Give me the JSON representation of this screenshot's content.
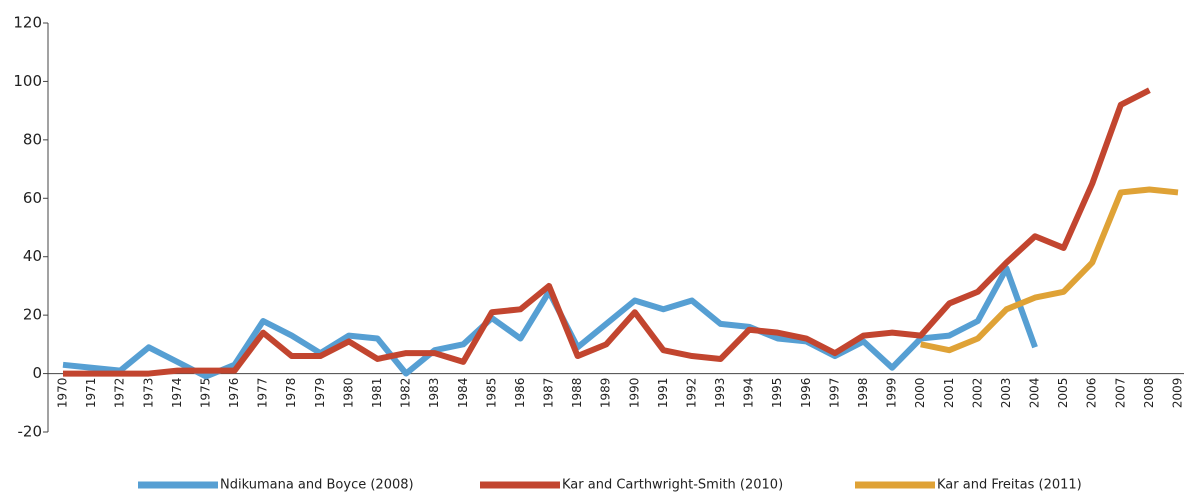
{
  "chart_data": {
    "type": "line",
    "categories": [
      "1970",
      "1971",
      "1972",
      "1973",
      "1974",
      "1975",
      "1976",
      "1977",
      "1978",
      "1979",
      "1980",
      "1981",
      "1982",
      "1983",
      "1984",
      "1985",
      "1986",
      "1987",
      "1988",
      "1989",
      "1990",
      "1991",
      "1992",
      "1993",
      "1994",
      "1995",
      "1996",
      "1997",
      "1998",
      "1999",
      "2000",
      "2001",
      "2002",
      "2003",
      "2004",
      "2005",
      "2006",
      "2007",
      "2008",
      "2009"
    ],
    "series": [
      {
        "name": "Ndikumana and Boyce (2008)",
        "color": "#569fd3",
        "values": [
          3,
          2,
          1,
          9,
          4,
          -1,
          3,
          18,
          13,
          7,
          13,
          12,
          0,
          8,
          10,
          19,
          12,
          28,
          9,
          17,
          25,
          22,
          25,
          17,
          16,
          12,
          11,
          6,
          11,
          2,
          12,
          13,
          18,
          36,
          9,
          null,
          null,
          null,
          null,
          null
        ]
      },
      {
        "name": "Kar and Carthwright-Smith (2010)",
        "color": "#c2452f",
        "values": [
          0,
          0,
          0,
          0,
          1,
          1,
          1,
          14,
          6,
          6,
          11,
          5,
          7,
          7,
          4,
          21,
          22,
          30,
          6,
          10,
          21,
          8,
          6,
          5,
          15,
          14,
          12,
          7,
          13,
          14,
          13,
          24,
          28,
          38,
          47,
          43,
          65,
          92,
          97,
          null
        ]
      },
      {
        "name": "Kar and Freitas (2011)",
        "color": "#dfa236",
        "values": [
          null,
          null,
          null,
          null,
          null,
          null,
          null,
          null,
          null,
          null,
          null,
          null,
          null,
          null,
          null,
          null,
          null,
          null,
          null,
          null,
          null,
          null,
          null,
          null,
          null,
          null,
          null,
          null,
          null,
          null,
          10,
          8,
          12,
          22,
          26,
          28,
          38,
          62,
          63,
          62
        ]
      }
    ],
    "ylim": [
      -20,
      120
    ],
    "yticks": [
      -20,
      0,
      20,
      40,
      60,
      80,
      100,
      120
    ],
    "grid": false
  }
}
